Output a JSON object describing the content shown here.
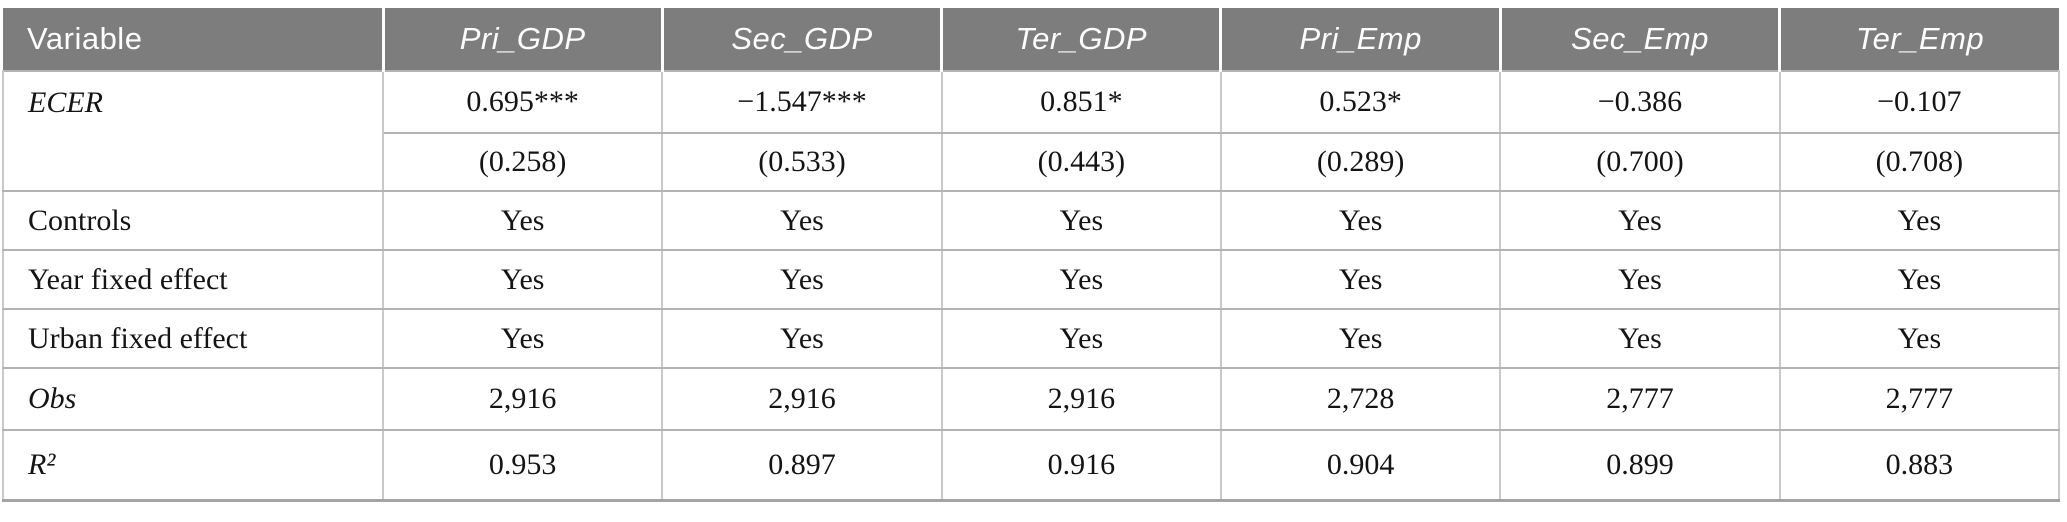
{
  "table": {
    "type": "table",
    "header": {
      "row_label_column": "Variable",
      "columns": [
        "Pri_GDP",
        "Sec_GDP",
        "Ter_GDP",
        "Pri_Emp",
        "Sec_Emp",
        "Ter_Emp"
      ]
    },
    "coefficient": {
      "label": "ECER",
      "label_italic": true,
      "estimates": [
        "0.695***",
        "−1.547***",
        "0.851*",
        "0.523*",
        "−0.386",
        "−0.107"
      ],
      "std_errors": [
        "(0.258)",
        "(0.533)",
        "(0.443)",
        "(0.289)",
        "(0.700)",
        "(0.708)"
      ]
    },
    "spec_rows": [
      {
        "label": "Controls",
        "italic": false,
        "values": [
          "Yes",
          "Yes",
          "Yes",
          "Yes",
          "Yes",
          "Yes"
        ]
      },
      {
        "label": "Year fixed effect",
        "italic": false,
        "values": [
          "Yes",
          "Yes",
          "Yes",
          "Yes",
          "Yes",
          "Yes"
        ]
      },
      {
        "label": "Urban fixed effect",
        "italic": false,
        "values": [
          "Yes",
          "Yes",
          "Yes",
          "Yes",
          "Yes",
          "Yes"
        ]
      },
      {
        "label": "Obs",
        "italic": true,
        "values": [
          "2,916",
          "2,916",
          "2,916",
          "2,728",
          "2,777",
          "2,777"
        ]
      },
      {
        "label": "R²",
        "italic": true,
        "values": [
          "0.953",
          "0.897",
          "0.916",
          "0.904",
          "0.899",
          "0.883"
        ]
      }
    ],
    "colors": {
      "header_bg": "#7d7d7d",
      "header_text": "#fdfdfd",
      "grid_vertical": "#c9c9c9",
      "grid_horizontal": "#b3b3b3",
      "bottom_rule": "#a3a3a3",
      "body_text": "#141414"
    }
  }
}
